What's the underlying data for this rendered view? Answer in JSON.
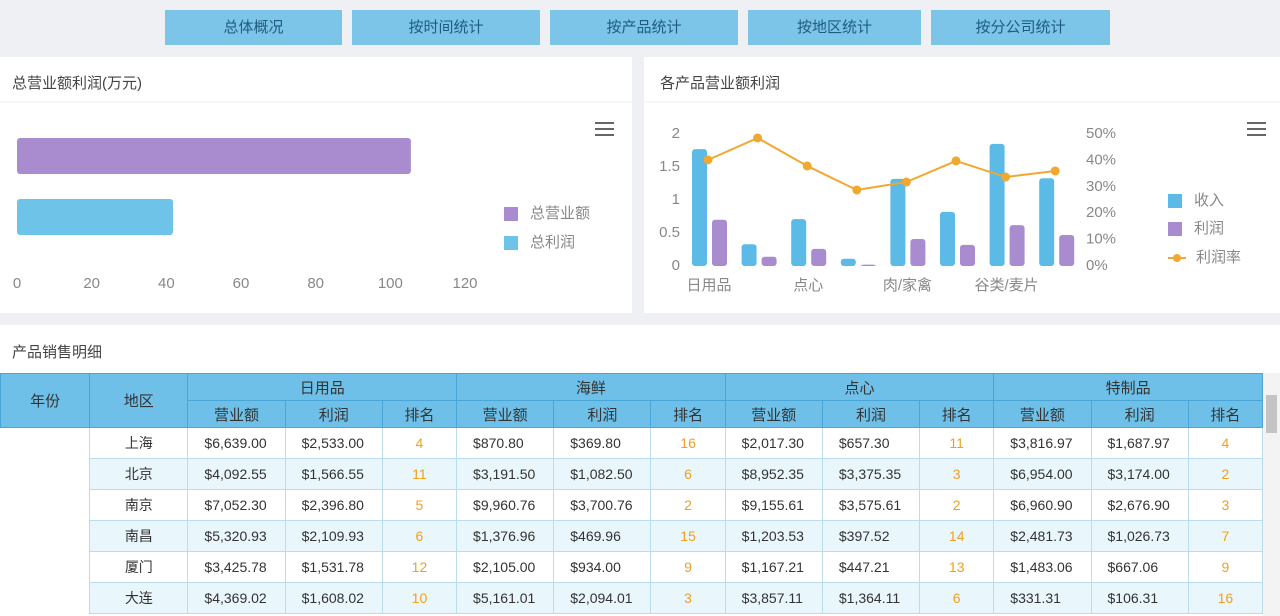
{
  "nav": [
    "总体概况",
    "按时间统计",
    "按产品统计",
    "按地区统计",
    "按分公司统计"
  ],
  "chart_data": [
    {
      "type": "hbar",
      "title": "总营业额利润(万元)",
      "series": [
        {
          "name": "总营业额",
          "color": "#a98bd0",
          "values": [
            105.5
          ]
        },
        {
          "name": "总利润",
          "color": "#6ec3e8",
          "values": [
            41.8
          ]
        }
      ],
      "xlim": [
        0,
        120
      ],
      "xticks": [
        0,
        20,
        40,
        60,
        80,
        100,
        120
      ],
      "legend": "right"
    },
    {
      "type": "bar-line",
      "title": "各产品营业额利润",
      "categories": [
        "日用品",
        null,
        "点心",
        null,
        "肉/家禽",
        null,
        "谷类/麦片",
        null
      ],
      "series": [
        {
          "name": "收入",
          "color": "#5bbbe6",
          "values": [
            1.77,
            0.33,
            0.71,
            0.11,
            1.32,
            0.82,
            1.85,
            1.33
          ]
        },
        {
          "name": "利润",
          "color": "#a98bd0",
          "values": [
            0.7,
            0.14,
            0.26,
            0.02,
            0.41,
            0.32,
            0.62,
            0.47
          ]
        },
        {
          "name": "利润率",
          "color": "#f0a830",
          "type": "line",
          "axis": "y2",
          "values": [
            40.2,
            48.5,
            37.9,
            28.8,
            31.8,
            39.8,
            33.7,
            36.0
          ]
        }
      ],
      "ylim": [
        0,
        2
      ],
      "yticks": [
        0,
        0.5,
        1,
        1.5,
        2
      ],
      "y2lim": [
        0,
        50
      ],
      "y2ticks": [
        {
          "value": 0,
          "label": "0%"
        },
        {
          "value": 10,
          "label": "10%"
        },
        {
          "value": 20,
          "label": "20%"
        },
        {
          "value": 30,
          "label": "30%"
        },
        {
          "value": 40,
          "label": "40%"
        },
        {
          "value": 50,
          "label": "50%"
        }
      ],
      "legend": "right"
    }
  ],
  "table": {
    "title": "产品销售明细",
    "header": [
      "年份",
      "地区"
    ],
    "groups": [
      {
        "name": "日用品",
        "columns": [
          "营业额",
          "利润",
          "排名"
        ]
      },
      {
        "name": "海鲜",
        "columns": [
          "营业额",
          "利润",
          "排名"
        ]
      },
      {
        "name": "点心",
        "columns": [
          "营业额",
          "利润",
          "排名"
        ]
      },
      {
        "name": "特制品",
        "columns": [
          "营业额",
          "利润",
          "排名"
        ]
      }
    ],
    "rows": [
      {
        "region": "上海",
        "cells": [
          "$6,639.00",
          "$2,533.00",
          "4",
          "$870.80",
          "$369.80",
          "16",
          "$2,017.30",
          "$657.30",
          "11",
          "$3,816.97",
          "$1,687.97",
          "4"
        ]
      },
      {
        "region": "北京",
        "cells": [
          "$4,092.55",
          "$1,566.55",
          "11",
          "$3,191.50",
          "$1,082.50",
          "6",
          "$8,952.35",
          "$3,375.35",
          "3",
          "$6,954.00",
          "$3,174.00",
          "2"
        ]
      },
      {
        "region": "南京",
        "cells": [
          "$7,052.30",
          "$2,396.80",
          "5",
          "$9,960.76",
          "$3,700.76",
          "2",
          "$9,155.61",
          "$3,575.61",
          "2",
          "$6,960.90",
          "$2,676.90",
          "3"
        ]
      },
      {
        "region": "南昌",
        "cells": [
          "$5,320.93",
          "$2,109.93",
          "6",
          "$1,376.96",
          "$469.96",
          "15",
          "$1,203.53",
          "$397.52",
          "14",
          "$2,481.73",
          "$1,026.73",
          "7"
        ]
      },
      {
        "region": "厦门",
        "cells": [
          "$3,425.78",
          "$1,531.78",
          "12",
          "$2,105.00",
          "$934.00",
          "9",
          "$1,167.21",
          "$447.21",
          "13",
          "$1,483.06",
          "$667.06",
          "9"
        ]
      },
      {
        "region": "大连",
        "cells": [
          "$4,369.02",
          "$1,608.02",
          "10",
          "$5,161.01",
          "$2,094.01",
          "3",
          "$3,857.11",
          "$1,364.11",
          "6",
          "$331.31",
          "$106.31",
          "16"
        ]
      }
    ]
  }
}
